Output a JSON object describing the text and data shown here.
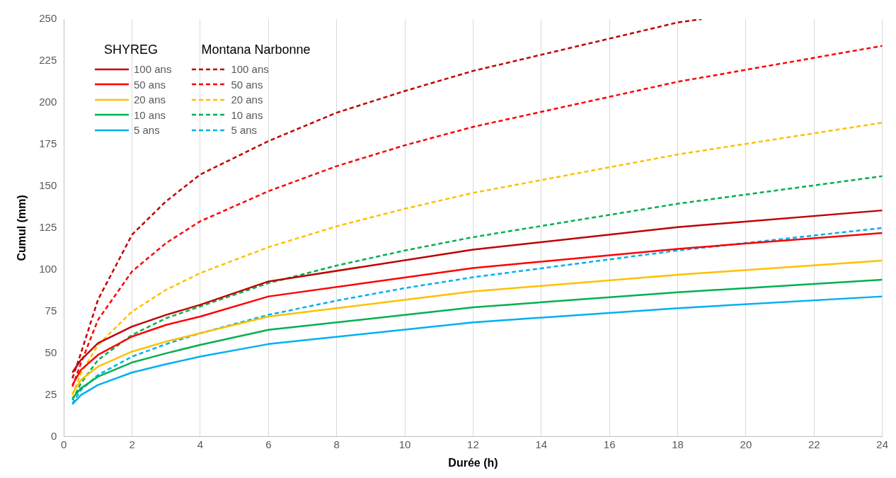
{
  "chart_data": {
    "type": "line",
    "xlabel": "Durée (h)",
    "ylabel": "Cumul (mm)",
    "xlim": [
      0,
      24
    ],
    "xticks": [
      0,
      2,
      4,
      6,
      8,
      10,
      12,
      14,
      16,
      18,
      20,
      22,
      24
    ],
    "ylim": [
      0,
      250
    ],
    "yticks": [
      0,
      25,
      50,
      75,
      100,
      125,
      150,
      175,
      200,
      225,
      250
    ],
    "grid": "x",
    "legend": "top left",
    "marker": "none",
    "annotations": [
      "SHYREG",
      "Montana Narbonne"
    ],
    "x": [
      0.25,
      0.5,
      1,
      2,
      3,
      4,
      6,
      12,
      18,
      24
    ],
    "series": [
      {
        "name": "100 ans",
        "color": "#c00000",
        "line_style": "solid",
        "values": [
          38.5,
          46,
          56,
          66,
          73,
          79,
          93,
          112,
          125.5,
          135.5
        ]
      },
      {
        "name": "50 ans",
        "color": "#ff0000",
        "line_style": "solid",
        "values": [
          31,
          40,
          49,
          60,
          67,
          72,
          84,
          101,
          112.5,
          122
        ]
      },
      {
        "name": "20 ans",
        "color": "#ffc000",
        "line_style": "solid",
        "values": [
          26,
          34,
          42,
          51,
          57,
          62,
          72,
          87,
          97,
          105.5
        ]
      },
      {
        "name": "10 ans",
        "color": "#00b050",
        "line_style": "solid",
        "values": [
          23,
          29,
          36,
          44.5,
          50,
          55,
          64,
          77.5,
          86.5,
          94
        ]
      },
      {
        "name": "5 ans",
        "color": "#00b0f0",
        "line_style": "solid",
        "values": [
          19.5,
          25,
          31,
          38.5,
          43.5,
          48,
          55.5,
          68.5,
          77,
          84
        ]
      },
      {
        "name": "100 ans",
        "color": "#c00000",
        "line_style": "dashed",
        "x": [
          0.25,
          0.5,
          1,
          2,
          3,
          4,
          6,
          8,
          10,
          12,
          18,
          18.7
        ],
        "values": [
          35,
          50,
          82,
          121,
          141,
          157,
          177,
          194,
          207,
          219,
          248,
          250
        ]
      },
      {
        "name": "50 ans",
        "color": "#ff0000",
        "line_style": "dashed",
        "x": [
          0.25,
          0.5,
          1,
          2,
          3,
          4,
          6,
          8,
          10,
          12,
          18,
          24
        ],
        "values": [
          30,
          44,
          70,
          99,
          116,
          129,
          147,
          162,
          174.5,
          185.5,
          212.5,
          234
        ]
      },
      {
        "name": "20 ans",
        "color": "#ffc000",
        "line_style": "dashed",
        "x": [
          0.25,
          0.5,
          1,
          2,
          3,
          4,
          6,
          8,
          10,
          12,
          18,
          24
        ],
        "values": [
          25,
          38,
          55,
          75,
          88,
          98,
          113.5,
          126,
          136.5,
          146,
          169,
          188
        ]
      },
      {
        "name": "10 ans",
        "color": "#00b050",
        "line_style": "dashed",
        "x": [
          0.25,
          0.5,
          1,
          2,
          3,
          4,
          6,
          8,
          10,
          12,
          18,
          24
        ],
        "values": [
          22,
          32,
          46,
          61,
          71,
          78,
          92,
          102.5,
          111.5,
          119.5,
          139.5,
          156
        ]
      },
      {
        "name": "5 ans",
        "color": "#00b0f0",
        "line_style": "dashed",
        "x": [
          0.25,
          0.5,
          1,
          2,
          3,
          4,
          6,
          8,
          10,
          12,
          18,
          24
        ],
        "values": [
          20,
          28,
          37,
          48,
          55.5,
          62,
          73,
          81.5,
          89,
          95.5,
          111.5,
          125
        ]
      }
    ]
  }
}
